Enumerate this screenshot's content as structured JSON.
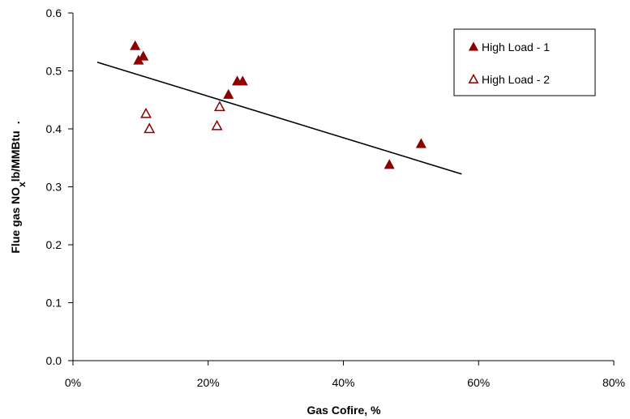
{
  "chart_data": {
    "type": "scatter",
    "xlabel": "Gas Cofire, %",
    "ylabel_main": "Flue gas NO",
    "ylabel_sub": "x",
    "ylabel_unit": "lb/MMBtu",
    "ylabel_trail": ".",
    "xlim": [
      0,
      80
    ],
    "ylim": [
      0.0,
      0.6
    ],
    "x_ticks": [
      0,
      20,
      40,
      60,
      80
    ],
    "x_tick_labels": [
      "0%",
      "20%",
      "40%",
      "60%",
      "80%"
    ],
    "y_ticks": [
      0.0,
      0.1,
      0.2,
      0.3,
      0.4,
      0.5,
      0.6
    ],
    "y_tick_labels": [
      "0.0",
      "0.1",
      "0.2",
      "0.3",
      "0.4",
      "0.5",
      "0.6"
    ],
    "grid": false,
    "legend_position": "top-right",
    "series": [
      {
        "name": "High Load - 1",
        "marker": "filled-triangle",
        "color": "#8b0000",
        "points": [
          {
            "x": 9.2,
            "y": 0.543
          },
          {
            "x": 9.7,
            "y": 0.518
          },
          {
            "x": 10.4,
            "y": 0.525
          },
          {
            "x": 23.0,
            "y": 0.459
          },
          {
            "x": 24.3,
            "y": 0.482
          },
          {
            "x": 25.1,
            "y": 0.482
          },
          {
            "x": 46.8,
            "y": 0.338
          },
          {
            "x": 51.5,
            "y": 0.374
          }
        ]
      },
      {
        "name": "High Load - 2",
        "marker": "open-triangle",
        "color": "#8b0000",
        "points": [
          {
            "x": 10.8,
            "y": 0.426
          },
          {
            "x": 11.3,
            "y": 0.4
          },
          {
            "x": 21.3,
            "y": 0.405
          },
          {
            "x": 21.7,
            "y": 0.438
          }
        ]
      }
    ],
    "trendline": {
      "color": "#000000",
      "points": [
        {
          "x": 3.6,
          "y": 0.515
        },
        {
          "x": 57.5,
          "y": 0.322
        }
      ]
    }
  }
}
